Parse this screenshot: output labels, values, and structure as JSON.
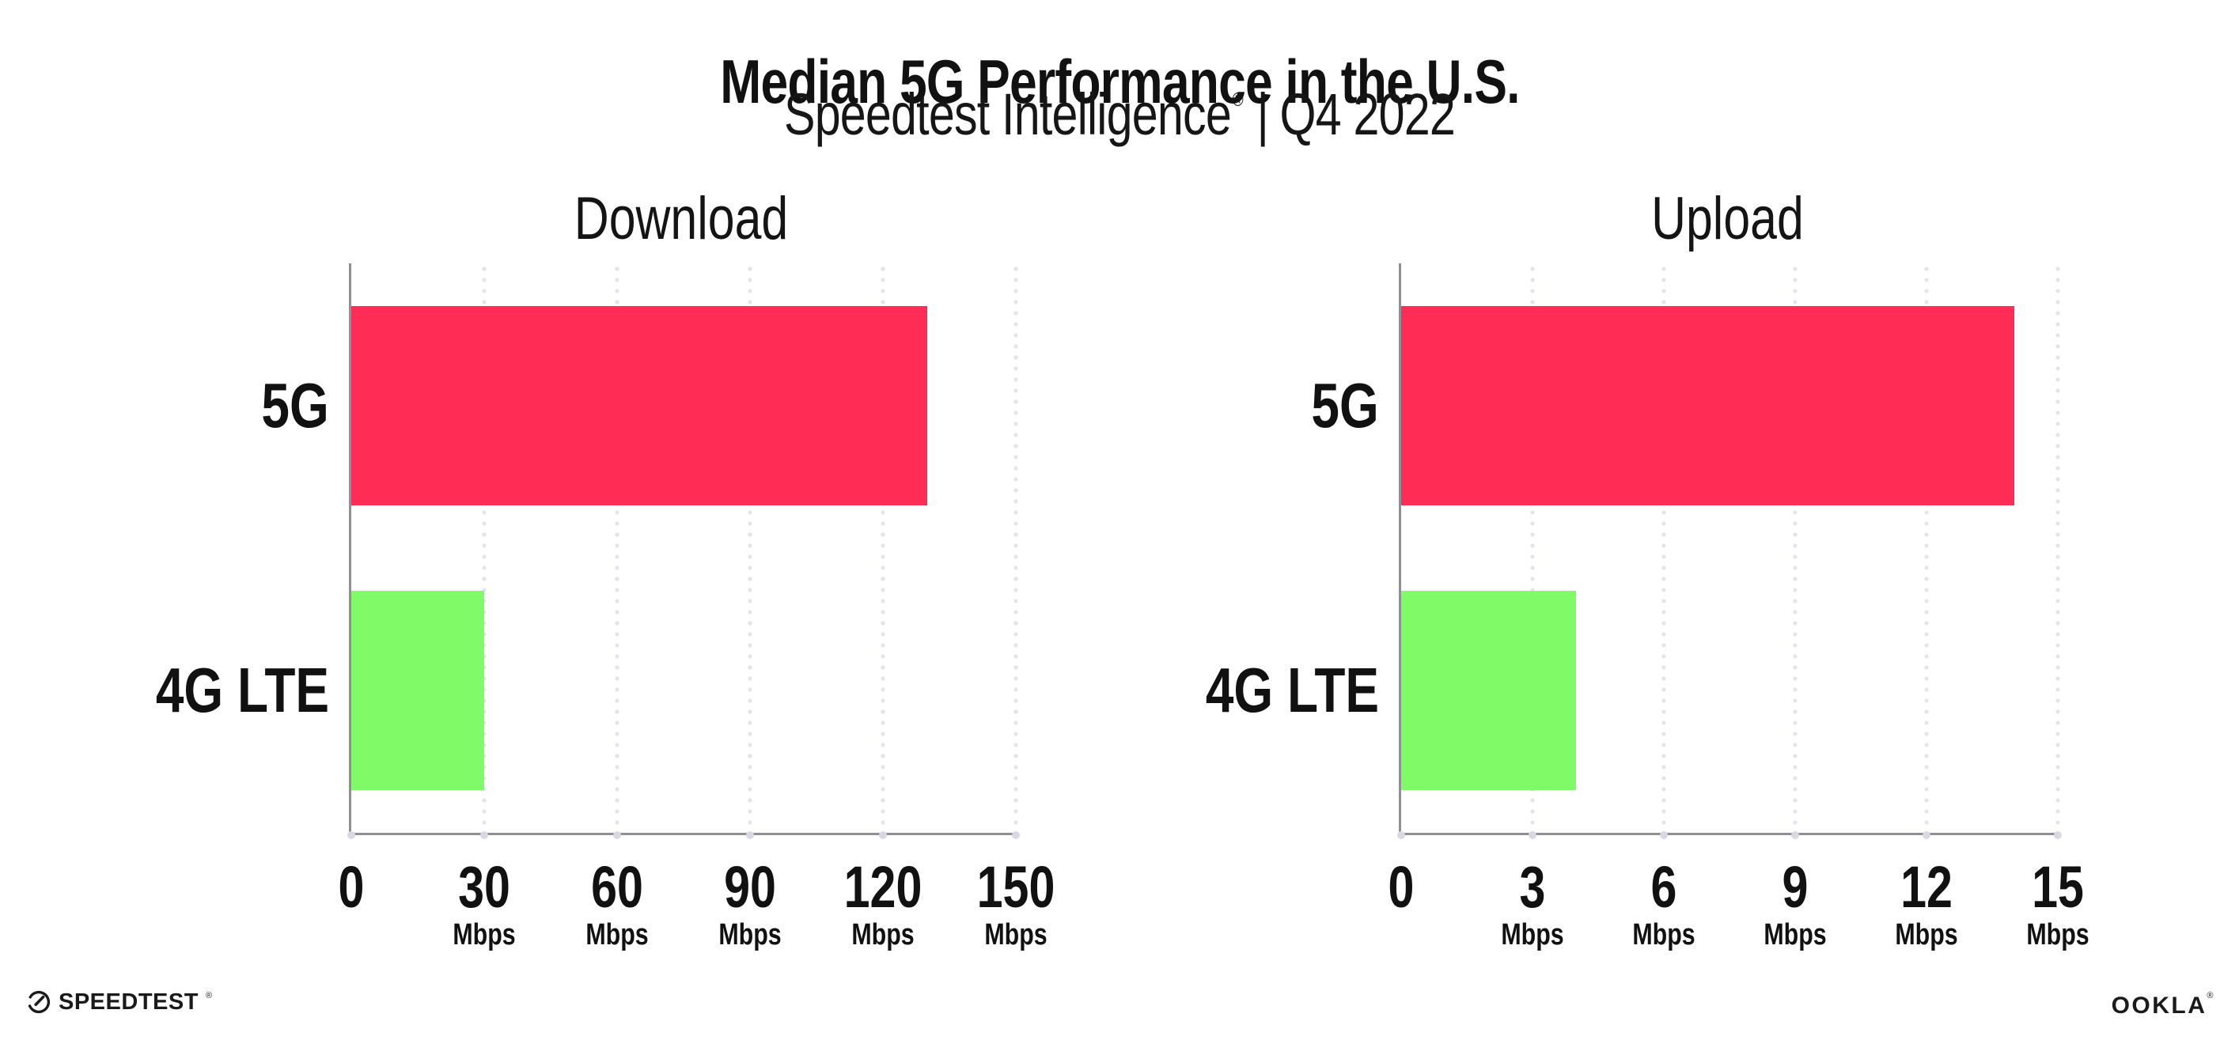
{
  "header": {
    "title": "Median 5G Performance in the U.S.",
    "subtitle_brand": "Speedtest Intelligence",
    "subtitle_reg": "®",
    "subtitle_separator": "|",
    "subtitle_period": "Q4 2022"
  },
  "chart_data": [
    {
      "type": "bar",
      "orientation": "horizontal",
      "title": "Download",
      "categories": [
        "5G",
        "4G LTE"
      ],
      "values": [
        130,
        30
      ],
      "unit": "Mbps",
      "xlim": [
        0,
        150
      ],
      "xticks": [
        0,
        30,
        60,
        90,
        120,
        150
      ],
      "bar_colors": [
        "#FF2D55",
        "#80FA66"
      ],
      "grid": "vertical-dotted",
      "legend": "none"
    },
    {
      "type": "bar",
      "orientation": "horizontal",
      "title": "Upload",
      "categories": [
        "5G",
        "4G LTE"
      ],
      "values": [
        14,
        4
      ],
      "unit": "Mbps",
      "xlim": [
        0,
        15
      ],
      "xticks": [
        0,
        3,
        6,
        9,
        12,
        15
      ],
      "bar_colors": [
        "#FF2D55",
        "#80FA66"
      ],
      "grid": "vertical-dotted",
      "legend": "none"
    }
  ],
  "footer": {
    "speedtest_label": "SPEEDTEST",
    "speedtest_reg": "®",
    "speedtest_icon": "gauge-icon",
    "ookla_label": "OOKLA",
    "ookla_reg": "®"
  },
  "colors": {
    "bar_5g": "#FF2D55",
    "bar_4g_lte": "#80FA66",
    "axis_line": "#8F8F96",
    "gridline_dots": "#E3E3EE",
    "tick_dots": "#D8D8E4",
    "text": "#111111",
    "background": "#FFFFFF"
  }
}
